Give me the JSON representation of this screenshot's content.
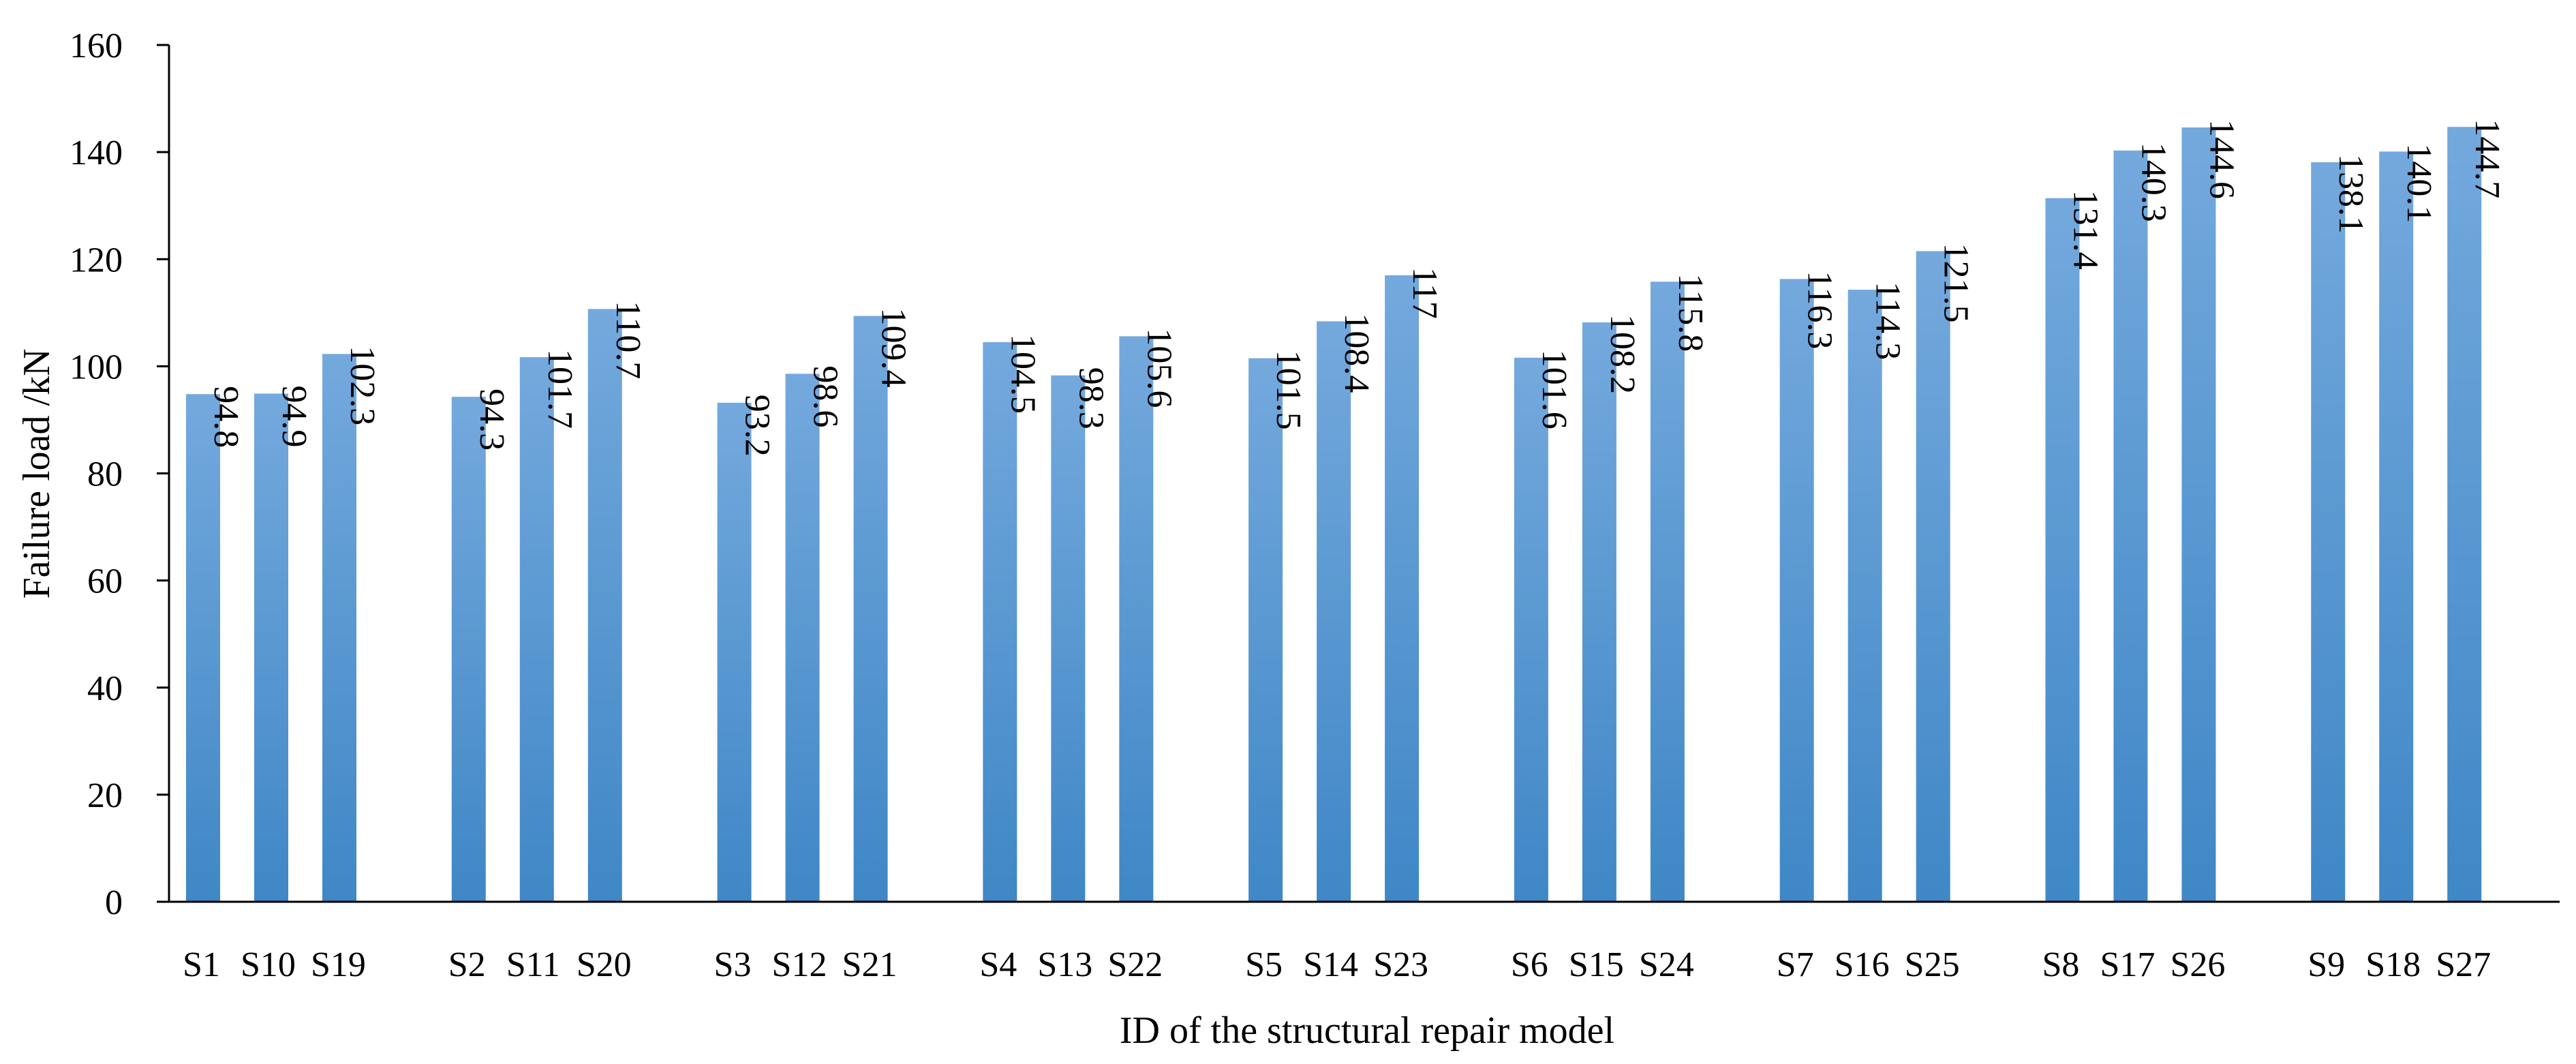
{
  "chart_data": {
    "type": "bar",
    "title": "",
    "xlabel": "ID of the structural repair model",
    "ylabel": "Failure load /kN",
    "ylim": [
      0,
      160
    ],
    "yticks": [
      0,
      20,
      40,
      60,
      80,
      100,
      120,
      140,
      160
    ],
    "grid": false,
    "legend": "none",
    "bar_color_top": "#74a9dd",
    "bar_color_bottom": "#3f87c6",
    "groups": [
      {
        "ids": [
          "S1",
          "S10",
          "S19"
        ],
        "values": [
          94.8,
          94.9,
          102.3
        ]
      },
      {
        "ids": [
          "S2",
          "S11",
          "S20"
        ],
        "values": [
          94.3,
          101.7,
          110.7
        ]
      },
      {
        "ids": [
          "S3",
          "S12",
          "S21"
        ],
        "values": [
          93.2,
          98.6,
          109.4
        ]
      },
      {
        "ids": [
          "S4",
          "S13",
          "S22"
        ],
        "values": [
          104.5,
          98.3,
          105.6
        ]
      },
      {
        "ids": [
          "S5",
          "S14",
          "S23"
        ],
        "values": [
          101.5,
          108.4,
          117
        ]
      },
      {
        "ids": [
          "S6",
          "S15",
          "S24"
        ],
        "values": [
          101.6,
          108.2,
          115.8
        ]
      },
      {
        "ids": [
          "S7",
          "S16",
          "S25"
        ],
        "values": [
          116.3,
          114.3,
          121.5
        ]
      },
      {
        "ids": [
          "S8",
          "S17",
          "S26"
        ],
        "values": [
          131.4,
          140.3,
          144.6
        ]
      },
      {
        "ids": [
          "S9",
          "S18",
          "S27"
        ],
        "values": [
          138.1,
          140.1,
          144.7
        ]
      }
    ]
  }
}
